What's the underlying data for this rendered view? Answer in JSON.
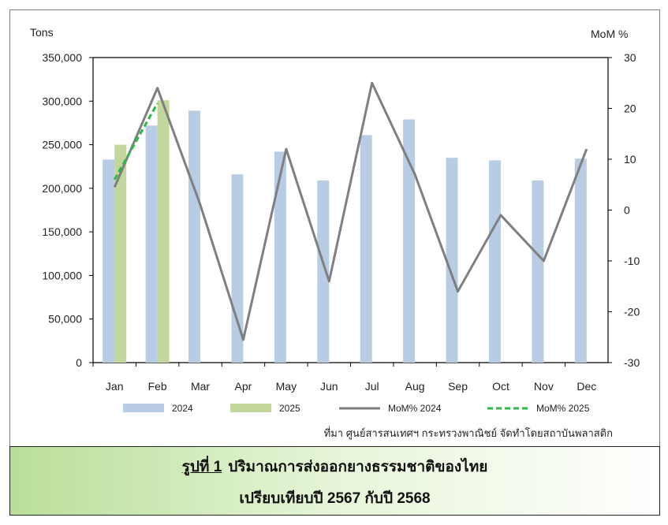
{
  "chart_data": {
    "type": "bar",
    "categories": [
      "Jan",
      "Feb",
      "Mar",
      "Apr",
      "May",
      "Jun",
      "Jul",
      "Aug",
      "Sep",
      "Oct",
      "Nov",
      "Dec"
    ],
    "left_axis": {
      "label": "Tons",
      "min": 0,
      "max": 350000,
      "ticks": [
        "0",
        "50,000",
        "100,000",
        "150,000",
        "200,000",
        "250,000",
        "300,000",
        "350,000"
      ],
      "tick_values": [
        0,
        50000,
        100000,
        150000,
        200000,
        250000,
        300000,
        350000
      ]
    },
    "right_axis": {
      "label": "MoM %",
      "min": -30,
      "max": 30,
      "ticks": [
        "-30",
        "-20",
        "-10",
        "0",
        "10",
        "20",
        "30"
      ],
      "tick_values": [
        -30,
        -20,
        -10,
        0,
        10,
        20,
        30
      ]
    },
    "series": [
      {
        "name": "2024",
        "kind": "bar",
        "axis": "left",
        "color": "#b8cce4",
        "values": [
          233000,
          272000,
          289000,
          216000,
          242000,
          209000,
          261000,
          279000,
          235000,
          232000,
          209000,
          234000
        ]
      },
      {
        "name": "2025",
        "kind": "bar",
        "axis": "left",
        "color": "#c3d69b",
        "values": [
          250000,
          301000,
          null,
          null,
          null,
          null,
          null,
          null,
          null,
          null,
          null,
          null
        ]
      },
      {
        "name": "MoM% 2024",
        "kind": "line",
        "axis": "right",
        "color": "#7f7f7f",
        "values": [
          4.5,
          24,
          1,
          -25.5,
          12,
          -14,
          25,
          7,
          -16,
          -1,
          -10,
          12
        ]
      },
      {
        "name": "MoM% 2025",
        "kind": "line",
        "axis": "right",
        "color": "#2db84a",
        "dash": true,
        "values": [
          6,
          21,
          null,
          null,
          null,
          null,
          null,
          null,
          null,
          null,
          null,
          null
        ]
      }
    ],
    "grid": false,
    "legend_position": "bottom"
  },
  "source": "ที่มา ศูนย์สารสนเทศฯ กระทรวงพาณิชย์ จัดทำโดยสถาบันพลาสติก",
  "caption": {
    "figure_label": "รูปที่ 1",
    "line1": "ปริมาณการส่งออกยางธรรมชาติของไทย",
    "line2": "เปรียบเทียบปี 2567 กับปี 2568"
  }
}
